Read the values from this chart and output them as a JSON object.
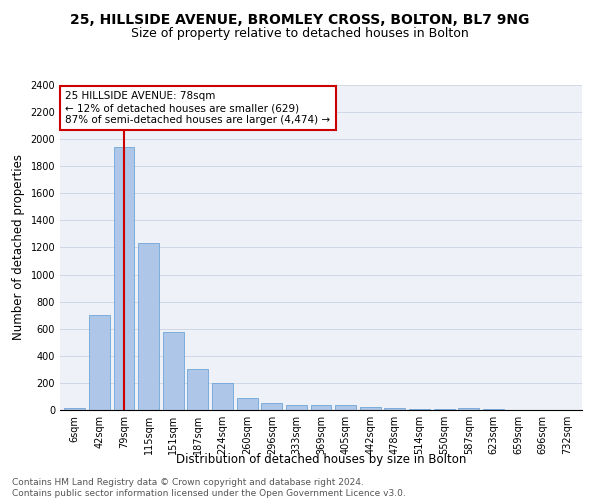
{
  "title1": "25, HILLSIDE AVENUE, BROMLEY CROSS, BOLTON, BL7 9NG",
  "title2": "Size of property relative to detached houses in Bolton",
  "xlabel": "Distribution of detached houses by size in Bolton",
  "ylabel": "Number of detached properties",
  "categories": [
    "6sqm",
    "42sqm",
    "79sqm",
    "115sqm",
    "151sqm",
    "187sqm",
    "224sqm",
    "260sqm",
    "296sqm",
    "333sqm",
    "369sqm",
    "405sqm",
    "442sqm",
    "478sqm",
    "514sqm",
    "550sqm",
    "587sqm",
    "623sqm",
    "659sqm",
    "696sqm",
    "732sqm"
  ],
  "values": [
    15,
    700,
    1940,
    1230,
    575,
    305,
    200,
    85,
    50,
    35,
    35,
    35,
    20,
    15,
    10,
    5,
    15,
    5,
    3,
    3,
    3
  ],
  "bar_color": "#aec6e8",
  "bar_edge_color": "#5b9bd5",
  "vline_x_index": 2,
  "vline_color": "#cc0000",
  "annotation_line1": "25 HILLSIDE AVENUE: 78sqm",
  "annotation_line2": "← 12% of detached houses are smaller (629)",
  "annotation_line3": "87% of semi-detached houses are larger (4,474) →",
  "annotation_box_color": "#cc0000",
  "ylim": [
    0,
    2400
  ],
  "yticks": [
    0,
    200,
    400,
    600,
    800,
    1000,
    1200,
    1400,
    1600,
    1800,
    2000,
    2200,
    2400
  ],
  "grid_color": "#d0d8e8",
  "background_color": "#eef2f8",
  "footer_text": "Contains HM Land Registry data © Crown copyright and database right 2024.\nContains public sector information licensed under the Open Government Licence v3.0.",
  "title1_fontsize": 10,
  "title2_fontsize": 9,
  "xlabel_fontsize": 8.5,
  "ylabel_fontsize": 8.5,
  "tick_fontsize": 7,
  "annotation_fontsize": 7.5,
  "footer_fontsize": 6.5
}
